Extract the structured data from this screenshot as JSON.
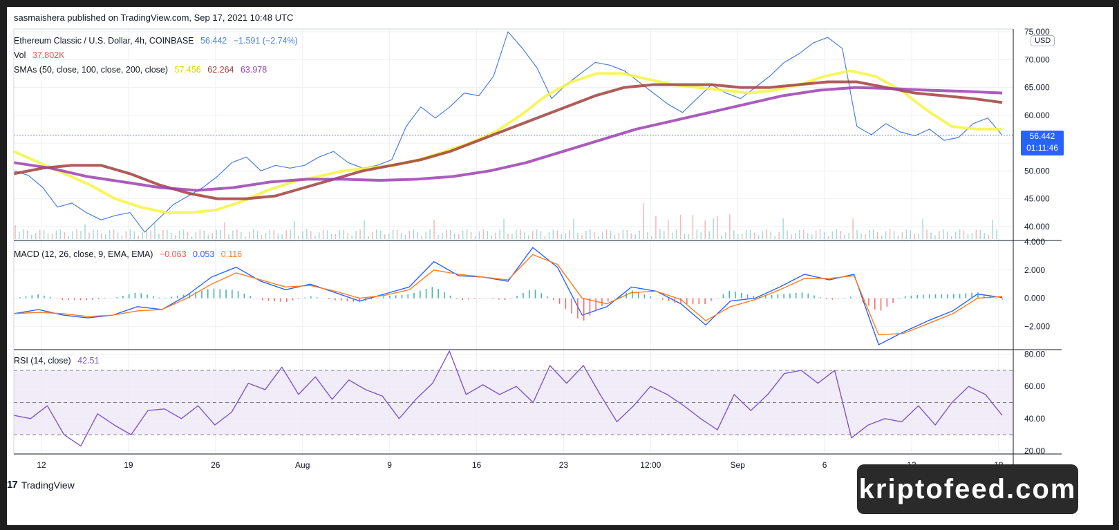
{
  "publisher": "sasmaishera published on TradingView.com, Sep 17, 2021 10:48 UTC",
  "legend": {
    "symbol": "Ethereum Classic / U.S. Dollar, 4h, COINBASE",
    "price": "56.442",
    "change": "−1.591 (−2.74%)",
    "vol_label": "Vol",
    "vol_value": "37.802K",
    "sma_label": "SMAs (50, close, 100, close, 200, close)",
    "sma50": "57.456",
    "sma100": "62.264",
    "sma200": "63.978",
    "macd_label": "MACD (12, 26, close, 9, EMA, EMA)",
    "macd_hist": "−0.063",
    "macd_value": "0.053",
    "macd_signal": "0.116",
    "rsi_label": "RSI (14, close)",
    "rsi_value": "42.51"
  },
  "price_tag": {
    "price": "56.442",
    "countdown": "01:11:46"
  },
  "currency": "USD",
  "logo_text": "TradingView",
  "watermark": "kriptofeed.com",
  "colors": {
    "price": "#4a7fe0",
    "sma50": "#f5f542",
    "sma100": "#a0413c",
    "sma200": "#9c40b0",
    "macd": "#2962ff",
    "signal": "#ff7b1c",
    "hist_up": "#26a69a",
    "hist_down": "#ef5350",
    "rsi": "#7e57c2",
    "rsi_band": "#ede7f6"
  },
  "chart_data": [
    {
      "type": "line",
      "title": "Ethereum Classic / U.S. Dollar, 4h, COINBASE",
      "x_ticks": [
        "12",
        "19",
        "26",
        "Aug",
        "9",
        "16",
        "23",
        "12:00",
        "Sep",
        "6",
        "13",
        "18"
      ],
      "y_ticks": [
        "40.000",
        "45.000",
        "50.000",
        "55.000",
        "60.000",
        "65.000",
        "70.000",
        "75.000"
      ],
      "ylim": [
        37.5,
        75.5
      ],
      "grid": true,
      "series": [
        {
          "name": "ETC/USD",
          "values": [
            50,
            49.2,
            47,
            43.5,
            44.2,
            42.5,
            41.2,
            42,
            42.5,
            39,
            41.5,
            44,
            45.5,
            47,
            49,
            51.5,
            52.5,
            50,
            51,
            50.5,
            51,
            52.5,
            53.5,
            51.5,
            50.5,
            51,
            52,
            58,
            61.5,
            59.5,
            61.5,
            64,
            63.5,
            67,
            75,
            72,
            68.5,
            63,
            65.5,
            67.5,
            69.5,
            69,
            68,
            66,
            64,
            62,
            60.5,
            63,
            65.5,
            64,
            63,
            65,
            67,
            69.5,
            71,
            73,
            74,
            72,
            58,
            56.5,
            58.5,
            57,
            56.3,
            57.5,
            55.5,
            56,
            58.5,
            59.5,
            56.4
          ]
        },
        {
          "name": "SMA 50",
          "values": [
            53.5,
            51.5,
            49.5,
            47.5,
            45,
            43.5,
            42.5,
            42.5,
            43,
            44.5,
            46.5,
            48,
            49,
            50,
            50.5,
            51,
            52,
            53.5,
            55,
            57,
            60,
            63.5,
            66,
            67.5,
            67.5,
            66.5,
            65.5,
            65,
            64.5,
            64,
            64.5,
            65.5,
            67,
            68,
            67,
            64.5,
            61,
            58,
            57.5,
            57.5
          ]
        },
        {
          "name": "SMA 100",
          "values": [
            49.5,
            50.5,
            51,
            51,
            49.5,
            47.5,
            46,
            45,
            45,
            45.5,
            47,
            48.5,
            50,
            51,
            52,
            53.5,
            55.5,
            57.5,
            59.5,
            61.5,
            63.5,
            65,
            65.5,
            65.5,
            65.5,
            65,
            65,
            65.5,
            66,
            66,
            65,
            64,
            63.5,
            63,
            62.3
          ]
        },
        {
          "name": "SMA 200",
          "values": [
            51.5,
            50.5,
            49,
            48,
            47,
            46.5,
            47,
            48,
            48.5,
            48.5,
            48.3,
            48.5,
            49,
            50,
            51.5,
            53.5,
            55.5,
            57.5,
            59,
            60.5,
            62,
            63.5,
            64.5,
            65,
            64.8,
            64.5,
            64.3,
            64
          ]
        }
      ]
    },
    {
      "type": "line",
      "title": "MACD (12, 26, close, 9, EMA, EMA)",
      "y_ticks": [
        "−2.000",
        "0.000",
        "2.000",
        "4.000"
      ],
      "ylim": [
        -3.6,
        4.0
      ],
      "series": [
        {
          "name": "MACD",
          "values": [
            -1.1,
            -0.8,
            -1.2,
            -1.4,
            -1.2,
            -0.6,
            -0.8,
            0.2,
            1.5,
            2.2,
            1.2,
            0.6,
            1.0,
            0.4,
            -0.2,
            0.3,
            0.8,
            2.6,
            1.6,
            1.5,
            1.2,
            3.6,
            2.2,
            -1.2,
            -0.6,
            0.8,
            0.5,
            -0.4,
            -1.9,
            -0.2,
            0.0,
            0.8,
            1.7,
            1.3,
            1.7,
            -3.3,
            -2.4,
            -1.6,
            -0.9,
            0.3,
            0.05
          ]
        },
        {
          "name": "Signal",
          "values": [
            -1.1,
            -1.0,
            -1.1,
            -1.3,
            -1.2,
            -0.9,
            -0.8,
            0.0,
            1.0,
            1.8,
            1.3,
            0.8,
            0.9,
            0.5,
            0.0,
            0.2,
            0.6,
            2.0,
            1.7,
            1.5,
            1.3,
            3.1,
            2.4,
            0.0,
            -0.4,
            0.4,
            0.5,
            -0.1,
            -1.6,
            -0.6,
            -0.1,
            0.6,
            1.4,
            1.4,
            1.6,
            -2.6,
            -2.5,
            -1.8,
            -1.1,
            0.0,
            0.12
          ]
        }
      ]
    },
    {
      "type": "line",
      "title": "RSI (14, close)",
      "y_ticks": [
        "20.00",
        "40.00",
        "60.00",
        "80.00"
      ],
      "ylim": [
        18,
        82
      ],
      "band": [
        30,
        70
      ],
      "series": [
        {
          "name": "RSI",
          "values": [
            42,
            40,
            48,
            30,
            23,
            43,
            36,
            30,
            45,
            46,
            40,
            48,
            36,
            44,
            62,
            58,
            72,
            55,
            66,
            52,
            64,
            58,
            54,
            40,
            52,
            62,
            82,
            55,
            61,
            55,
            60,
            50,
            73,
            62,
            73,
            55,
            38,
            48,
            60,
            55,
            48,
            40,
            33,
            55,
            45,
            55,
            68,
            70,
            62,
            70,
            28,
            36,
            40,
            38,
            48,
            36,
            50,
            60,
            55,
            42
          ]
        }
      ]
    }
  ]
}
